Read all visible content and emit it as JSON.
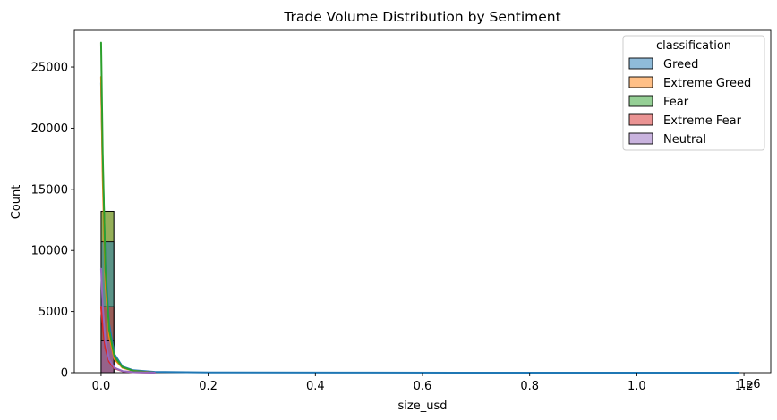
{
  "chart_data": {
    "type": "histogram",
    "title": "Trade Volume Distribution by Sentiment",
    "xlabel": "size_usd",
    "ylabel": "Count",
    "x_offset_label": "1e6",
    "xlim": [
      -0.05,
      1.25
    ],
    "ylim": [
      0,
      28000
    ],
    "x_ticks": [
      0.0,
      0.2,
      0.4,
      0.6,
      0.8,
      1.0,
      1.2
    ],
    "x_tick_labels": [
      "0.0",
      "0.2",
      "0.4",
      "0.6",
      "0.8",
      "1.0",
      "1.2"
    ],
    "y_ticks": [
      0,
      5000,
      10000,
      15000,
      20000,
      25000
    ],
    "y_tick_labels": [
      "0",
      "5000",
      "10000",
      "15000",
      "20000",
      "25000"
    ],
    "legend": {
      "title": "classification",
      "placement": "top-right"
    },
    "bin_width": 0.0238,
    "series": [
      {
        "name": "Greed",
        "color": "#1f77b4",
        "bins": [
          {
            "x0": 0.0,
            "x1": 0.0238,
            "count": 10700
          }
        ],
        "kde": {
          "x": [
            0.0,
            0.003,
            0.008,
            0.015,
            0.025,
            0.04,
            0.06,
            0.1,
            0.2,
            0.5,
            1.19
          ],
          "y": [
            23700,
            17000,
            9000,
            4000,
            1500,
            500,
            200,
            60,
            20,
            5,
            0
          ]
        }
      },
      {
        "name": "Extreme Greed",
        "color": "#ff7f0e",
        "bins": [
          {
            "x0": 0.0,
            "x1": 0.0238,
            "count": 13200
          }
        ],
        "kde": {
          "x": [
            0.0,
            0.003,
            0.008,
            0.015,
            0.025,
            0.04,
            0.06,
            0.1
          ],
          "y": [
            24200,
            16000,
            7500,
            3000,
            1100,
            400,
            150,
            0
          ]
        }
      },
      {
        "name": "Fear",
        "color": "#2ca02c",
        "bins": [
          {
            "x0": 0.0,
            "x1": 0.0238,
            "count": 13200
          }
        ],
        "kde": {
          "x": [
            0.0,
            0.003,
            0.008,
            0.015,
            0.025,
            0.04,
            0.06,
            0.1
          ],
          "y": [
            27000,
            18000,
            8500,
            3500,
            1300,
            450,
            150,
            0
          ]
        }
      },
      {
        "name": "Extreme Fear",
        "color": "#d62728",
        "bins": [
          {
            "x0": 0.0,
            "x1": 0.0238,
            "count": 5400
          }
        ],
        "kde": {
          "x": [
            0.0,
            0.003,
            0.008,
            0.015,
            0.025,
            0.04,
            0.06,
            0.1
          ],
          "y": [
            5400,
            3800,
            2000,
            900,
            350,
            120,
            40,
            0
          ]
        }
      },
      {
        "name": "Neutral",
        "color": "#9467bd",
        "bins": [
          {
            "x0": 0.0,
            "x1": 0.0238,
            "count": 2600
          }
        ],
        "kde": {
          "x": [
            0.0,
            0.003,
            0.008,
            0.015,
            0.025,
            0.04,
            0.06,
            0.1
          ],
          "y": [
            8500,
            5500,
            2600,
            1100,
            400,
            130,
            40,
            0
          ]
        }
      }
    ]
  }
}
